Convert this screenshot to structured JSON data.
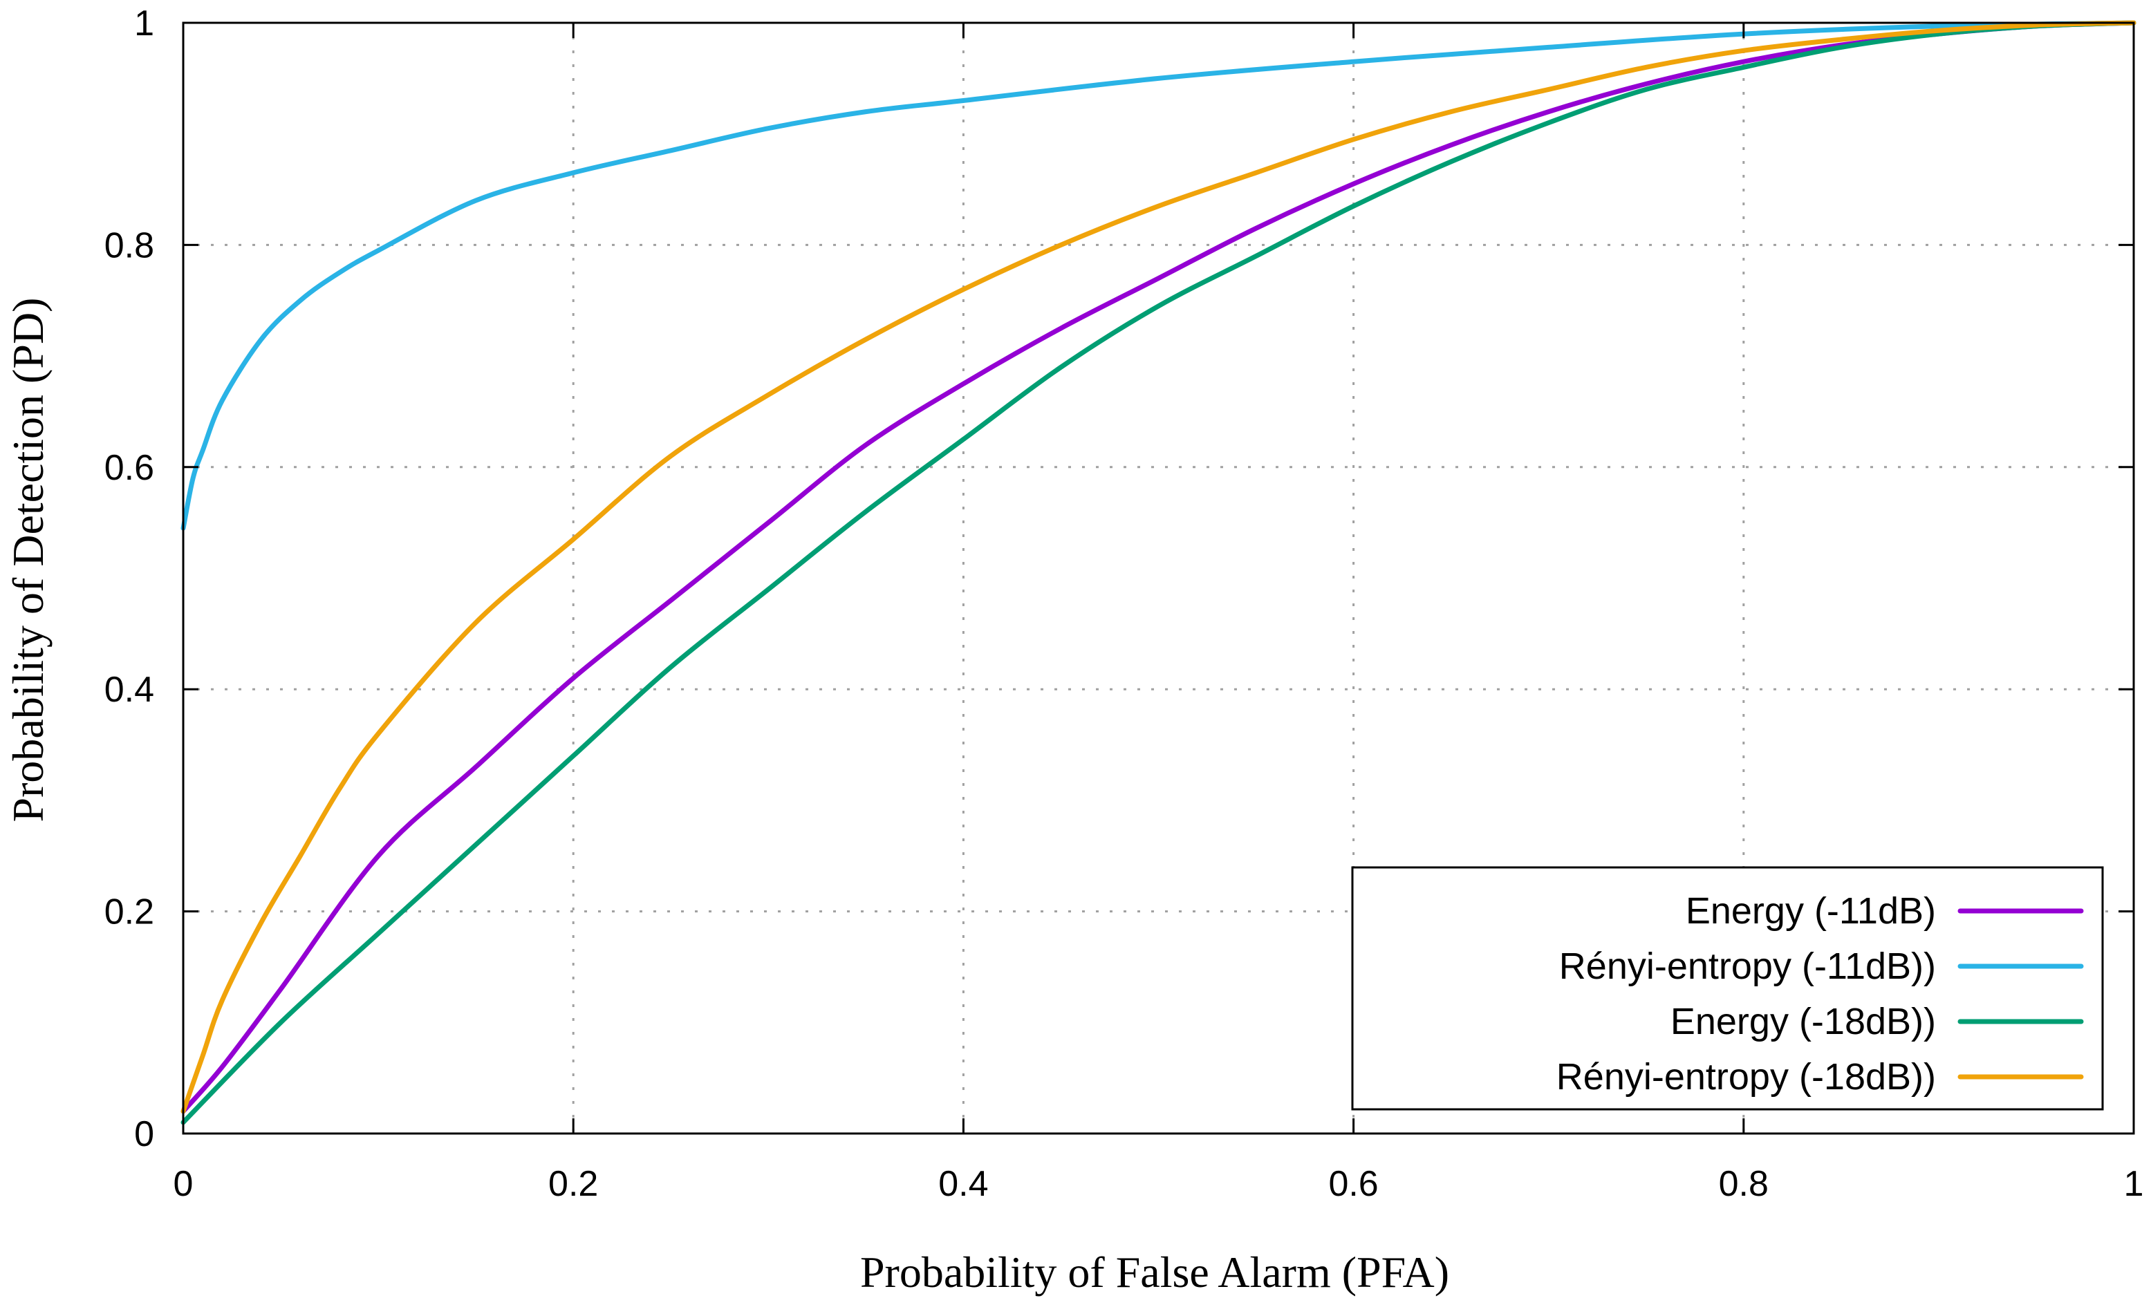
{
  "chart_data": {
    "type": "line",
    "title": "",
    "xlabel": "Probability of False Alarm (PFA)",
    "ylabel": "Probability of Detection (PD)",
    "xlim": [
      0,
      1
    ],
    "ylim": [
      0,
      1
    ],
    "grid": true,
    "legend_position": "bottom-right",
    "x_ticks": [
      0,
      0.2,
      0.4,
      0.6,
      0.8,
      1
    ],
    "x_tick_labels": [
      "0",
      "0.2",
      "0.4",
      "0.6",
      "0.8",
      "1"
    ],
    "y_ticks": [
      0,
      0.2,
      0.4,
      0.6,
      0.8,
      1
    ],
    "y_tick_labels": [
      "0",
      "0.2",
      "0.4",
      "0.6",
      "0.8",
      "1"
    ],
    "series": [
      {
        "name": "Energy (-11dB)",
        "color": "#9400d3",
        "x": [
          0,
          0.02,
          0.05,
          0.1,
          0.15,
          0.2,
          0.25,
          0.3,
          0.35,
          0.4,
          0.45,
          0.5,
          0.55,
          0.6,
          0.65,
          0.7,
          0.75,
          0.8,
          0.85,
          0.9,
          0.95,
          1.0
        ],
        "y": [
          0.02,
          0.06,
          0.13,
          0.25,
          0.33,
          0.41,
          0.48,
          0.55,
          0.62,
          0.675,
          0.725,
          0.77,
          0.815,
          0.855,
          0.89,
          0.92,
          0.945,
          0.965,
          0.98,
          0.99,
          0.997,
          1.0
        ]
      },
      {
        "name": "Rényi-entropy (-11dB))",
        "color": "#2ab3e6",
        "x": [
          0,
          0.005,
          0.01,
          0.02,
          0.04,
          0.06,
          0.08,
          0.1,
          0.15,
          0.2,
          0.25,
          0.3,
          0.35,
          0.4,
          0.5,
          0.6,
          0.7,
          0.8,
          0.9,
          1.0
        ],
        "y": [
          0.545,
          0.59,
          0.615,
          0.66,
          0.715,
          0.75,
          0.775,
          0.795,
          0.84,
          0.865,
          0.885,
          0.905,
          0.92,
          0.93,
          0.95,
          0.965,
          0.978,
          0.99,
          0.997,
          1.0
        ]
      },
      {
        "name": "Energy (-18dB))",
        "color": "#009e73",
        "x": [
          0,
          0.05,
          0.1,
          0.15,
          0.2,
          0.25,
          0.3,
          0.35,
          0.4,
          0.45,
          0.5,
          0.55,
          0.6,
          0.65,
          0.7,
          0.75,
          0.8,
          0.85,
          0.9,
          0.95,
          1.0
        ],
        "y": [
          0.01,
          0.1,
          0.18,
          0.26,
          0.34,
          0.42,
          0.49,
          0.56,
          0.625,
          0.69,
          0.745,
          0.79,
          0.835,
          0.875,
          0.91,
          0.94,
          0.96,
          0.978,
          0.99,
          0.997,
          1.0
        ]
      },
      {
        "name": "Rényi-entropy (-18dB))",
        "color": "#f0a30a",
        "x": [
          0,
          0.01,
          0.02,
          0.04,
          0.06,
          0.08,
          0.1,
          0.15,
          0.2,
          0.25,
          0.3,
          0.35,
          0.4,
          0.45,
          0.5,
          0.55,
          0.6,
          0.65,
          0.7,
          0.75,
          0.8,
          0.85,
          0.9,
          0.95,
          1.0
        ],
        "y": [
          0.02,
          0.07,
          0.12,
          0.19,
          0.25,
          0.31,
          0.36,
          0.46,
          0.535,
          0.61,
          0.665,
          0.715,
          0.76,
          0.8,
          0.835,
          0.865,
          0.895,
          0.92,
          0.94,
          0.96,
          0.975,
          0.985,
          0.993,
          0.998,
          1.0
        ]
      }
    ]
  }
}
